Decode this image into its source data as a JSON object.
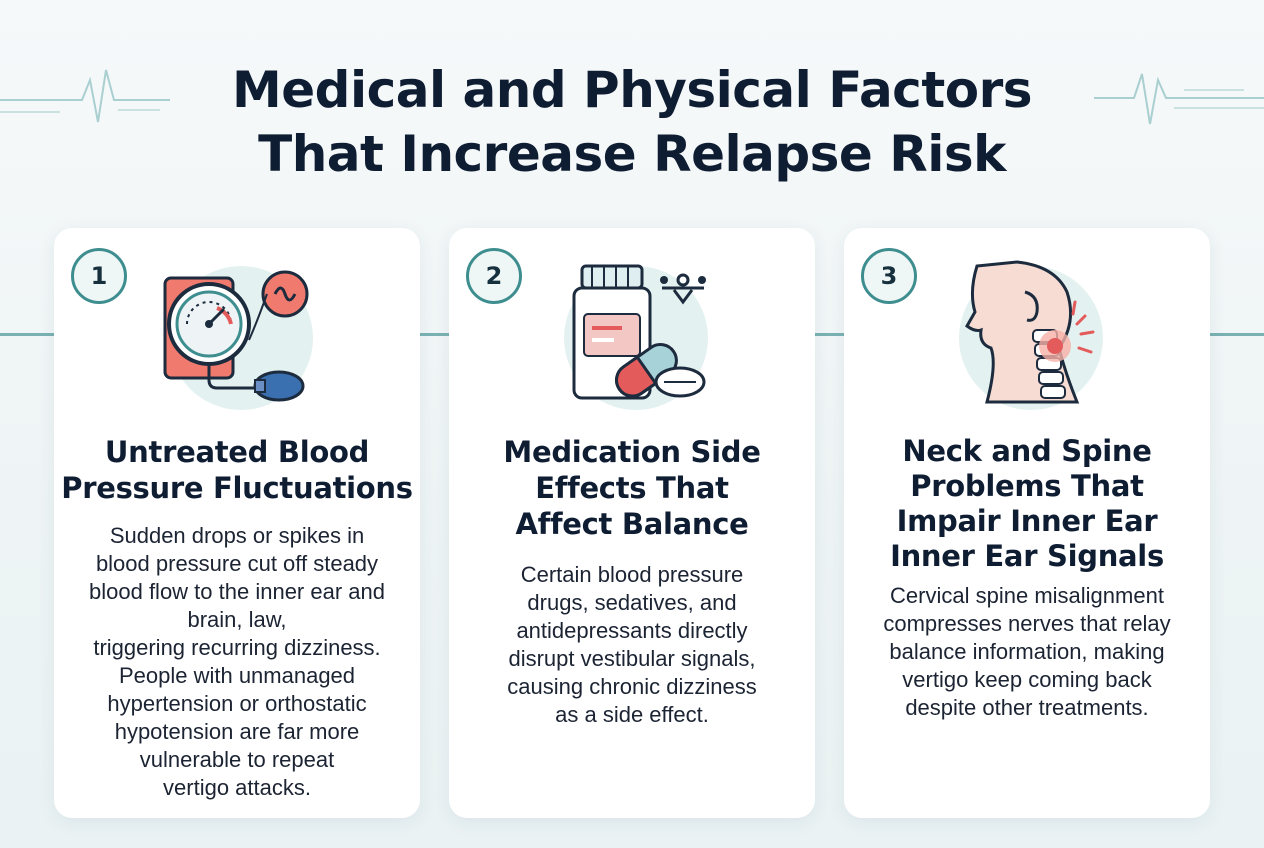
{
  "title": {
    "line1": "Medical and Physical Factors",
    "line2": "That Increase Relapse Risk"
  },
  "colors": {
    "teal": "#3e8e8f",
    "navy": "#0f1d33",
    "coral": "#e35b5b",
    "pale_teal": "#e3f1f0"
  },
  "cards": [
    {
      "number": "1",
      "icon": "blood-pressure-gauge-icon",
      "title_lines": [
        "Untreated Blood",
        "Pressure Fluctuations"
      ],
      "body_lines": [
        "Sudden drops or spikes in",
        "blood pressure cut off steady",
        "blood flow to the inner ear and",
        "brain, law,",
        "triggering recurring dizziness.",
        "People with unmanaged",
        "hypertension or orthostatic",
        "hypotension are far more",
        "vulnerable to repeat",
        "vertigo attacks."
      ]
    },
    {
      "number": "2",
      "icon": "medication-bottle-pills-icon",
      "title_lines": [
        "Medication Side",
        "Effects That",
        "Affect Balance"
      ],
      "body_lines": [
        "Certain blood pressure",
        "drugs, sedatives, and",
        "antidepressants directly",
        "disrupt vestibular signals,",
        "causing chronic dizziness",
        "as a side effect."
      ]
    },
    {
      "number": "3",
      "icon": "neck-spine-icon",
      "title_lines": [
        "Neck and Spine",
        "Problems That",
        "Impair Inner Ear",
        "Inner Ear Signals"
      ],
      "body_lines": [
        "Cervical spine misalignment",
        "compresses nerves that relay",
        "balance information, making",
        "vertigo keep coming back",
        "despite other treatments."
      ]
    }
  ]
}
